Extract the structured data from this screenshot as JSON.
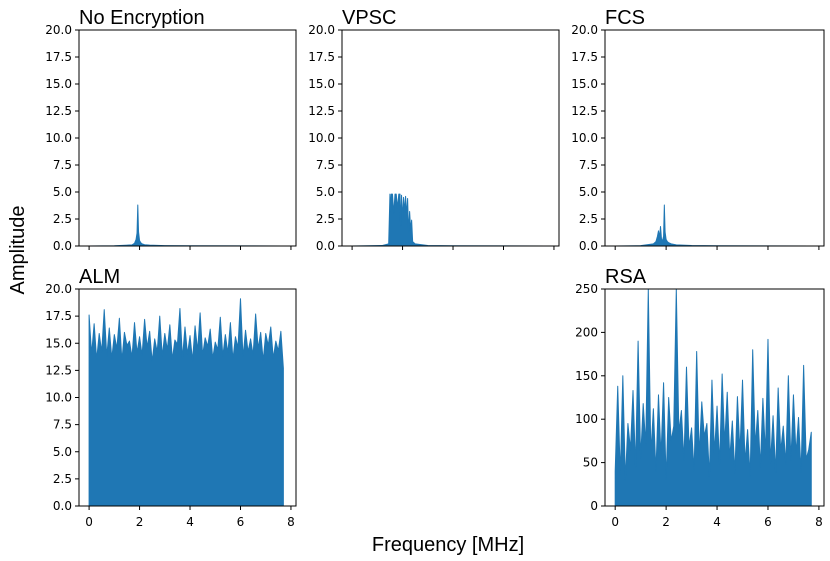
{
  "figure": {
    "xlabel": "Frequency [MHz]",
    "ylabel": "Amplitude",
    "series_color": "#1f77b4"
  },
  "chart_data": [
    {
      "type": "area",
      "title": "No Encryption",
      "xlim": [
        -0.4,
        8.2
      ],
      "ylim": [
        0,
        20
      ],
      "xticks": [
        0,
        2,
        4,
        6,
        8
      ],
      "yticks": [
        0.0,
        2.5,
        5.0,
        7.5,
        10.0,
        12.5,
        15.0,
        17.5,
        20.0
      ],
      "ytick_labels": [
        "0.0",
        "2.5",
        "5.0",
        "7.5",
        "10.0",
        "12.5",
        "15.0",
        "17.5",
        "20.0"
      ],
      "show_xtick_labels": false,
      "x": [
        0,
        1.0,
        1.7,
        1.8,
        1.86,
        1.9,
        1.93,
        1.96,
        2.0,
        2.05,
        2.1,
        2.2,
        2.4,
        3.0,
        4.0,
        7.7
      ],
      "y": [
        0,
        0.02,
        0.1,
        0.25,
        0.6,
        1.2,
        3.8,
        1.3,
        0.5,
        0.3,
        0.2,
        0.12,
        0.08,
        0.04,
        0.02,
        0
      ]
    },
    {
      "type": "area",
      "title": "VPSC",
      "xlim": [
        -0.4,
        8.2
      ],
      "ylim": [
        0,
        20
      ],
      "xticks": [
        0,
        2,
        4,
        6,
        8
      ],
      "yticks": [
        0.0,
        2.5,
        5.0,
        7.5,
        10.0,
        12.5,
        15.0,
        17.5,
        20.0
      ],
      "ytick_labels": [
        "0.0",
        "2.5",
        "5.0",
        "7.5",
        "10.0",
        "12.5",
        "15.0",
        "17.5",
        "20.0"
      ],
      "show_xtick_labels": false,
      "x": [
        0,
        1.2,
        1.45,
        1.5,
        1.52,
        1.55,
        1.6,
        1.65,
        1.7,
        1.75,
        1.8,
        1.85,
        1.9,
        1.92,
        1.96,
        2.0,
        2.04,
        2.08,
        2.12,
        2.16,
        2.2,
        2.24,
        2.28,
        2.32,
        2.36,
        2.4,
        2.5,
        3.0,
        4.0,
        7.7
      ],
      "y": [
        0,
        0.05,
        0.2,
        4.8,
        3.2,
        4.8,
        4.8,
        3.0,
        4.8,
        4.8,
        3.5,
        4.8,
        4.8,
        1.8,
        4.7,
        2.5,
        4.5,
        3.2,
        4.6,
        2.8,
        4.4,
        1.2,
        3.2,
        1.5,
        2.4,
        0.4,
        0.2,
        0.05,
        0.02,
        0
      ]
    },
    {
      "type": "area",
      "title": "FCS",
      "xlim": [
        -0.4,
        8.2
      ],
      "ylim": [
        0,
        20
      ],
      "xticks": [
        0,
        2,
        4,
        6,
        8
      ],
      "yticks": [
        0.0,
        2.5,
        5.0,
        7.5,
        10.0,
        12.5,
        15.0,
        17.5,
        20.0
      ],
      "ytick_labels": [
        "0.0",
        "2.5",
        "5.0",
        "7.5",
        "10.0",
        "12.5",
        "15.0",
        "17.5",
        "20.0"
      ],
      "show_xtick_labels": false,
      "x": [
        0,
        1.0,
        1.5,
        1.6,
        1.66,
        1.7,
        1.74,
        1.78,
        1.82,
        1.86,
        1.9,
        1.93,
        1.96,
        2.0,
        2.05,
        2.1,
        2.2,
        2.4,
        3.0,
        4.0,
        7.7
      ],
      "y": [
        0,
        0.03,
        0.2,
        0.4,
        0.9,
        1.4,
        0.8,
        1.8,
        0.6,
        0.5,
        0.9,
        3.8,
        1.3,
        0.6,
        0.4,
        0.3,
        0.2,
        0.1,
        0.05,
        0.02,
        0
      ]
    },
    {
      "type": "area",
      "title": "ALM",
      "xlim": [
        -0.4,
        8.2
      ],
      "ylim": [
        0,
        20
      ],
      "xticks": [
        0,
        2,
        4,
        6,
        8
      ],
      "yticks": [
        0.0,
        2.5,
        5.0,
        7.5,
        10.0,
        12.5,
        15.0,
        17.5,
        20.0
      ],
      "ytick_labels": [
        "0.0",
        "2.5",
        "5.0",
        "7.5",
        "10.0",
        "12.5",
        "15.0",
        "17.5",
        "20.0"
      ],
      "xtick_labels": [
        "0",
        "2",
        "4",
        "6",
        "8"
      ],
      "show_xtick_labels": true,
      "x": [
        0.0,
        0.1,
        0.2,
        0.3,
        0.4,
        0.5,
        0.6,
        0.7,
        0.8,
        0.9,
        1.0,
        1.1,
        1.2,
        1.3,
        1.4,
        1.5,
        1.6,
        1.7,
        1.8,
        1.9,
        2.0,
        2.1,
        2.2,
        2.3,
        2.4,
        2.5,
        2.6,
        2.7,
        2.8,
        2.9,
        3.0,
        3.1,
        3.2,
        3.3,
        3.4,
        3.5,
        3.6,
        3.7,
        3.8,
        3.9,
        4.0,
        4.1,
        4.2,
        4.3,
        4.4,
        4.5,
        4.6,
        4.7,
        4.8,
        4.9,
        5.0,
        5.1,
        5.2,
        5.3,
        5.4,
        5.5,
        5.6,
        5.7,
        5.8,
        5.9,
        6.0,
        6.1,
        6.2,
        6.3,
        6.4,
        6.5,
        6.6,
        6.7,
        6.8,
        6.9,
        7.0,
        7.1,
        7.2,
        7.3,
        7.4,
        7.5,
        7.6,
        7.7
      ],
      "y": [
        17.6,
        14.0,
        16.8,
        13.5,
        15.9,
        14.2,
        18.1,
        13.8,
        16.4,
        13.6,
        15.8,
        14.5,
        17.3,
        13.4,
        16.0,
        14.8,
        15.2,
        13.7,
        16.9,
        14.1,
        15.6,
        13.9,
        17.2,
        14.6,
        16.1,
        13.3,
        15.4,
        14.2,
        17.5,
        13.8,
        15.9,
        14.4,
        16.7,
        13.5,
        15.3,
        14.9,
        18.2,
        13.6,
        16.5,
        14.0,
        15.7,
        13.4,
        16.6,
        14.3,
        17.8,
        13.9,
        15.5,
        14.7,
        16.3,
        13.6,
        15.1,
        14.4,
        17.4,
        13.8,
        15.8,
        14.1,
        16.9,
        13.5,
        15.6,
        14.6,
        19.1,
        13.7,
        16.2,
        14.2,
        15.4,
        13.9,
        17.7,
        14.5,
        16.0,
        13.4,
        15.9,
        14.8,
        16.5,
        13.6,
        15.2,
        14.3,
        16.1,
        12.7
      ]
    },
    {
      "type": "area",
      "title": "RSA",
      "xlim": [
        -0.4,
        8.2
      ],
      "ylim": [
        0,
        250
      ],
      "xticks": [
        0,
        2,
        4,
        6,
        8
      ],
      "yticks": [
        0,
        50,
        100,
        150,
        200,
        250
      ],
      "ytick_labels": [
        "0",
        "50",
        "100",
        "150",
        "200",
        "250"
      ],
      "xtick_labels": [
        "0",
        "2",
        "4",
        "6",
        "8"
      ],
      "show_xtick_labels": true,
      "x": [
        0.0,
        0.1,
        0.2,
        0.3,
        0.4,
        0.5,
        0.6,
        0.7,
        0.8,
        0.9,
        1.0,
        1.1,
        1.2,
        1.3,
        1.4,
        1.5,
        1.6,
        1.7,
        1.8,
        1.9,
        2.0,
        2.1,
        2.2,
        2.3,
        2.4,
        2.5,
        2.6,
        2.7,
        2.8,
        2.9,
        3.0,
        3.1,
        3.2,
        3.3,
        3.4,
        3.5,
        3.6,
        3.7,
        3.8,
        3.9,
        4.0,
        4.1,
        4.2,
        4.3,
        4.4,
        4.5,
        4.6,
        4.7,
        4.8,
        4.9,
        5.0,
        5.1,
        5.2,
        5.3,
        5.4,
        5.5,
        5.6,
        5.7,
        5.8,
        5.9,
        6.0,
        6.1,
        6.2,
        6.3,
        6.4,
        6.5,
        6.6,
        6.7,
        6.8,
        6.9,
        7.0,
        7.1,
        7.2,
        7.3,
        7.4,
        7.5,
        7.6,
        7.7
      ],
      "y": [
        40,
        138,
        35,
        150,
        30,
        95,
        65,
        133,
        45,
        190,
        55,
        118,
        70,
        250,
        60,
        112,
        40,
        128,
        58,
        142,
        30,
        125,
        75,
        92,
        250,
        85,
        110,
        52,
        160,
        68,
        90,
        40,
        178,
        58,
        120,
        80,
        95,
        34,
        145,
        61,
        115,
        48,
        152,
        72,
        131,
        55,
        98,
        38,
        126,
        62,
        145,
        50,
        88,
        34,
        180,
        69,
        110,
        45,
        124,
        60,
        192,
        50,
        104,
        38,
        136,
        63,
        92,
        48,
        150,
        52,
        128,
        60,
        102,
        38,
        162,
        54,
        65,
        85
      ]
    }
  ]
}
